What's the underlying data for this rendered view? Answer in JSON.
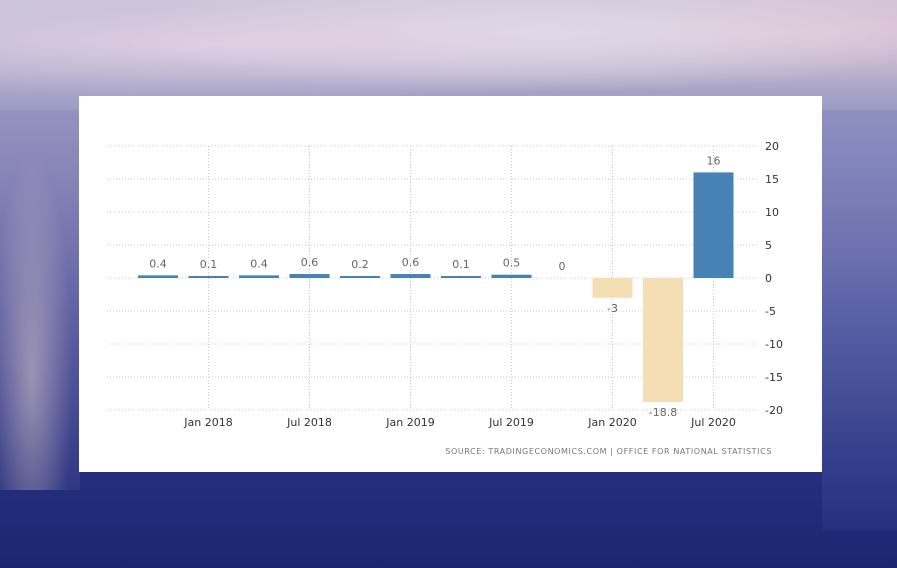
{
  "background": {
    "image_description": ""
  },
  "colors": {
    "positive": "#4682b4",
    "negative": "#f5deb3"
  },
  "chart_data": {
    "type": "bar",
    "categories": [
      "Oct 2017",
      "Jan 2018",
      "Apr 2018",
      "Jul 2018",
      "Oct 2018",
      "Jan 2019",
      "Apr 2019",
      "Jul 2019",
      "Oct 2019",
      "Jan 2020",
      "Apr 2020",
      "Jul 2020"
    ],
    "values": [
      0.4,
      0.1,
      0.4,
      0.6,
      0.2,
      0.6,
      0.1,
      0.5,
      0,
      -3,
      -18.8,
      16
    ],
    "labels": [
      "0.4",
      "0.1",
      "0.4",
      "0.6",
      "0.2",
      "0.6",
      "0.1",
      "0.5",
      "0",
      "-3",
      "-18.8",
      "16"
    ],
    "x_tick_labels": [
      "Jan 2018",
      "Jul 2018",
      "Jan 2019",
      "Jul 2019",
      "Jan 2020",
      "Jul 2020"
    ],
    "x_tick_categories": [
      1,
      3,
      5,
      7,
      9,
      11
    ],
    "y_ticks": [
      20,
      15,
      10,
      5,
      0,
      -5,
      -10,
      -15,
      -20
    ],
    "y_tick_labels": [
      "20",
      "15",
      "10",
      "5",
      "0",
      "-5",
      "-10",
      "-15",
      "-20"
    ],
    "ylim": [
      -20,
      20
    ],
    "y_axis_side": "right",
    "grid": true,
    "title": "",
    "xlabel": "",
    "ylabel": ""
  },
  "source": {
    "text": "SOURCE: TRADINGECONOMICS.COM  |  OFFICE FOR NATIONAL STATISTICS"
  }
}
